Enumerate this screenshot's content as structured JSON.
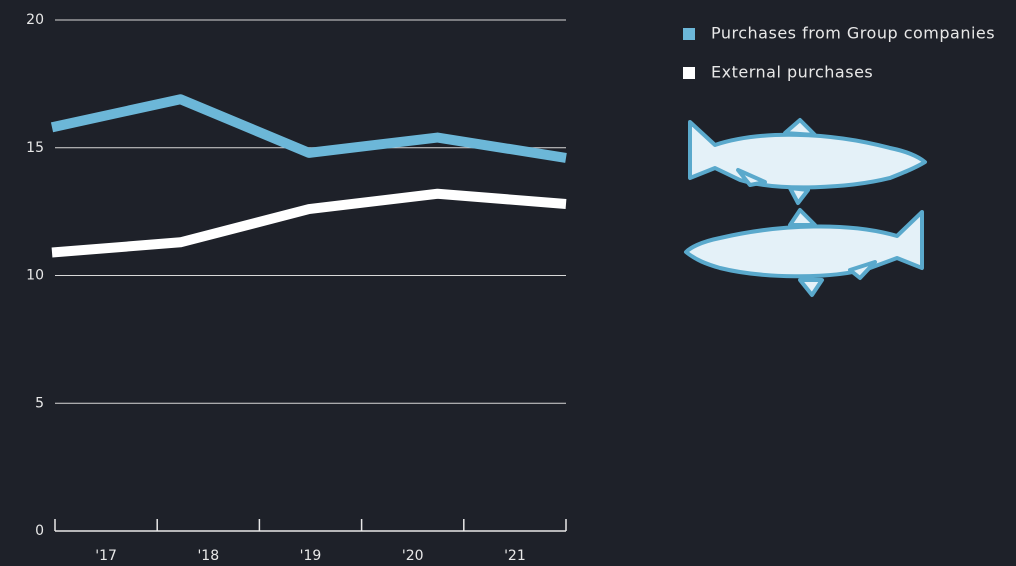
{
  "chart_data": {
    "type": "line",
    "categories": [
      "'17",
      "'18",
      "'19",
      "'20",
      "'21"
    ],
    "series": [
      {
        "name": "Purchases from Group companies",
        "color": "#6cb7d8",
        "values": [
          15.8,
          16.9,
          14.8,
          15.4,
          14.6
        ]
      },
      {
        "name": "External purchases",
        "color": "#ffffff",
        "values": [
          10.9,
          11.3,
          12.6,
          13.2,
          12.8
        ]
      }
    ],
    "ylim": [
      0,
      20
    ],
    "yticks": [
      0,
      5,
      10,
      15,
      20
    ],
    "grid": true
  }
}
